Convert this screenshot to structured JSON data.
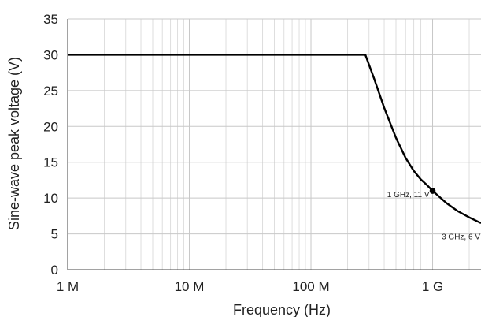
{
  "chart_data": {
    "type": "line",
    "title": "",
    "xlabel": "Frequency (Hz)",
    "ylabel": "Sine-wave peak voltage (V)",
    "x_scale": "log",
    "xlim": [
      1000000,
      2500000000
    ],
    "ylim": [
      0,
      35
    ],
    "grid": true,
    "x_ticks": [
      {
        "value": 1000000,
        "label": "1 M"
      },
      {
        "value": 10000000,
        "label": "10 M"
      },
      {
        "value": 100000000,
        "label": "100 M"
      },
      {
        "value": 1000000000,
        "label": "1 G"
      }
    ],
    "y_ticks": [
      {
        "value": 0,
        "label": "0"
      },
      {
        "value": 5,
        "label": "5"
      },
      {
        "value": 10,
        "label": "10"
      },
      {
        "value": 15,
        "label": "15"
      },
      {
        "value": 20,
        "label": "20"
      },
      {
        "value": 25,
        "label": "25"
      },
      {
        "value": 30,
        "label": "30"
      },
      {
        "value": 35,
        "label": "35"
      }
    ],
    "series": [
      {
        "color": "#000000",
        "points": [
          {
            "x": 1000000,
            "y": 30
          },
          {
            "x": 280000000,
            "y": 30
          },
          {
            "x": 330000000,
            "y": 26.7
          },
          {
            "x": 400000000,
            "y": 22.6
          },
          {
            "x": 500000000,
            "y": 18.4
          },
          {
            "x": 600000000,
            "y": 15.6
          },
          {
            "x": 700000000,
            "y": 13.8
          },
          {
            "x": 800000000,
            "y": 12.6
          },
          {
            "x": 900000000,
            "y": 11.8
          },
          {
            "x": 1000000000,
            "y": 11
          },
          {
            "x": 1300000000,
            "y": 9.3
          },
          {
            "x": 1600000000,
            "y": 8.2
          },
          {
            "x": 2000000000,
            "y": 7.3
          },
          {
            "x": 2500000000,
            "y": 6.5
          }
        ]
      }
    ],
    "annotations": [
      {
        "x": 1000000000,
        "y": 11,
        "text": "1 GHz, 11 V",
        "marker": true
      },
      {
        "x": 3000000000,
        "y": 6,
        "text": "3 GHz, 6 V",
        "marker": false
      }
    ]
  }
}
